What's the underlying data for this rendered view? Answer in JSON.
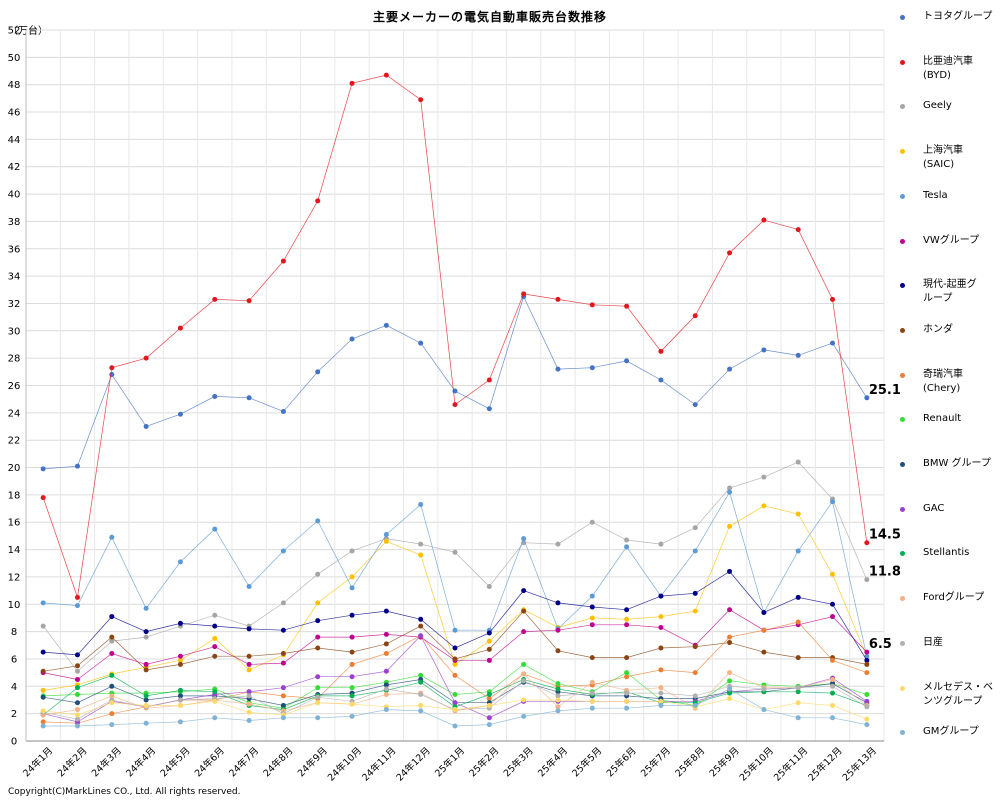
{
  "chart_data": {
    "type": "line",
    "title": "主要メーカーの電気自動車販売台数推移",
    "unit": "（万台）",
    "copyright": "Copyright(C)MarkLines CO., Ltd. All rights reserved.",
    "categories": [
      "24年1月",
      "24年2月",
      "24年3月",
      "24年4月",
      "24年5月",
      "24年6月",
      "24年7月",
      "24年8月",
      "24年9月",
      "24年10月",
      "24年11月",
      "24年12月",
      "25年1月",
      "25年2月",
      "25年3月",
      "25年4月",
      "25年5月",
      "25年6月",
      "25年7月",
      "25年8月",
      "25年9月",
      "25年10月",
      "25年11月",
      "25年12月",
      "25年13月"
    ],
    "yticks": [
      "0",
      "2",
      "4",
      "6",
      "8",
      "10",
      "12",
      "14",
      "16",
      "18",
      "20",
      "22",
      "24",
      "26",
      "28",
      "30",
      "32",
      "34",
      "36",
      "38",
      "40",
      "42",
      "44",
      "46",
      "48",
      "50",
      "52"
    ],
    "ylim": [
      0,
      52
    ],
    "grid": true,
    "legend_position": "right",
    "series": [
      {
        "name": "トヨタグループ",
        "color": "#4472c4",
        "values": [
          19.9,
          20.1,
          26.8,
          23.0,
          23.9,
          25.2,
          25.1,
          24.1,
          27.0,
          29.4,
          30.4,
          29.1,
          25.6,
          24.3,
          32.5,
          27.2,
          27.3,
          27.8,
          26.4,
          24.6,
          27.2,
          28.6,
          28.2,
          29.1,
          25.1
        ]
      },
      {
        "name": "比亜迪汽車\n(BYD)",
        "color": "#e4161d",
        "values": [
          17.8,
          10.5,
          27.3,
          28.0,
          30.2,
          32.3,
          32.2,
          35.1,
          39.5,
          48.1,
          48.7,
          46.9,
          24.6,
          26.4,
          32.7,
          32.3,
          31.9,
          31.8,
          28.5,
          31.1,
          35.7,
          38.1,
          37.4,
          32.3,
          14.5
        ]
      },
      {
        "name": "Geely",
        "color": "#a5a5a5",
        "values": [
          8.4,
          5.1,
          7.3,
          7.6,
          8.4,
          9.2,
          8.4,
          10.1,
          12.2,
          13.9,
          14.8,
          14.4,
          13.8,
          11.3,
          14.5,
          14.4,
          16.0,
          14.7,
          14.4,
          15.6,
          18.5,
          19.3,
          20.4,
          17.7,
          11.8
        ]
      },
      {
        "name": "上海汽車\n(SAIC)",
        "color": "#ffc000",
        "values": [
          3.7,
          4.1,
          4.9,
          5.4,
          5.9,
          7.5,
          5.2,
          6.3,
          10.1,
          12.0,
          14.6,
          13.6,
          5.6,
          7.3,
          9.6,
          8.3,
          9.0,
          8.9,
          9.1,
          9.5,
          15.7,
          17.2,
          16.6,
          12.2,
          6.2
        ]
      },
      {
        "name": "Tesla",
        "color": "#5b9bd5",
        "values": [
          10.1,
          9.9,
          14.9,
          9.7,
          13.1,
          15.5,
          11.3,
          13.9,
          16.1,
          11.2,
          15.1,
          17.3,
          8.1,
          8.1,
          14.8,
          8.2,
          10.6,
          14.2,
          10.6,
          13.9,
          18.2,
          9.4,
          13.9,
          17.5,
          6.2
        ]
      },
      {
        "name": "VWグループ",
        "color": "#c00090",
        "values": [
          5.0,
          4.5,
          6.4,
          5.6,
          6.2,
          6.9,
          5.6,
          5.7,
          7.6,
          7.6,
          7.8,
          7.6,
          5.9,
          5.9,
          8.0,
          8.1,
          8.5,
          8.5,
          8.3,
          7.0,
          9.6,
          8.1,
          8.5,
          9.1,
          6.5
        ]
      },
      {
        "name": "現代-起亜グ\nループ",
        "color": "#00008b",
        "values": [
          6.5,
          6.3,
          9.1,
          8.0,
          8.6,
          8.4,
          8.2,
          8.1,
          8.8,
          9.2,
          9.5,
          8.9,
          6.8,
          7.9,
          11.0,
          10.1,
          9.8,
          9.6,
          10.6,
          10.8,
          12.4,
          9.4,
          10.5,
          10.0,
          5.9
        ]
      },
      {
        "name": "ホンダ",
        "color": "#8b4513",
        "values": [
          5.1,
          5.5,
          7.6,
          5.2,
          5.6,
          6.2,
          6.2,
          6.4,
          6.8,
          6.5,
          7.1,
          8.4,
          6.0,
          6.7,
          9.5,
          6.6,
          6.1,
          6.1,
          6.8,
          6.9,
          7.2,
          6.5,
          6.1,
          6.1,
          5.6
        ]
      },
      {
        "name": "奇瑞汽車\n(Chery)",
        "color": "#ed7d31",
        "values": [
          1.4,
          1.3,
          2.0,
          2.5,
          3.0,
          3.0,
          3.6,
          3.3,
          3.1,
          5.6,
          6.4,
          7.7,
          4.8,
          3.1,
          4.9,
          4.0,
          4.1,
          4.7,
          5.2,
          5.0,
          7.6,
          8.1,
          8.7,
          5.9,
          5.0
        ]
      },
      {
        "name": "Renault",
        "color": "#33dd33",
        "values": [
          3.3,
          3.4,
          3.5,
          3.5,
          3.6,
          3.8,
          2.8,
          2.4,
          3.9,
          3.9,
          4.3,
          4.8,
          3.4,
          3.6,
          5.6,
          4.2,
          3.6,
          5.0,
          3.0,
          2.6,
          4.4,
          4.1,
          4.0,
          4.2,
          3.4
        ]
      },
      {
        "name": "BMW グループ",
        "color": "#1f4e79",
        "values": [
          3.2,
          2.8,
          4.0,
          3.0,
          3.3,
          3.3,
          3.1,
          2.6,
          3.4,
          3.5,
          4.1,
          4.5,
          2.8,
          2.8,
          4.3,
          3.6,
          3.3,
          3.3,
          3.1,
          3.1,
          3.6,
          3.6,
          3.9,
          4.2,
          2.8
        ]
      },
      {
        "name": "GAC",
        "color": "#9b40d0",
        "values": [
          2.0,
          1.4,
          2.9,
          2.5,
          3.0,
          3.4,
          3.6,
          3.9,
          4.7,
          4.7,
          5.1,
          7.7,
          2.8,
          1.7,
          2.9,
          2.9,
          2.9,
          2.9,
          2.9,
          2.9,
          3.6,
          3.8,
          3.9,
          4.6,
          2.9
        ]
      },
      {
        "name": "Stellantis",
        "color": "#00b050",
        "values": [
          1.9,
          3.9,
          4.8,
          3.3,
          3.7,
          3.6,
          2.6,
          2.3,
          3.3,
          3.3,
          3.7,
          4.3,
          2.5,
          3.4,
          4.5,
          3.8,
          3.4,
          3.6,
          2.8,
          2.8,
          3.5,
          3.6,
          3.6,
          3.5,
          2.6
        ]
      },
      {
        "name": "Fordグループ",
        "color": "#f4b183",
        "values": [
          1.9,
          2.3,
          3.3,
          2.4,
          2.6,
          3.0,
          2.7,
          2.2,
          2.8,
          2.7,
          3.4,
          3.5,
          2.2,
          2.6,
          4.9,
          2.5,
          4.3,
          3.7,
          3.9,
          2.4,
          5.0,
          3.9,
          3.9,
          4.5,
          2.6
        ]
      },
      {
        "name": "日産",
        "color": "#b0b0b0",
        "values": [
          2.1,
          1.6,
          3.0,
          2.5,
          3.0,
          3.1,
          3.3,
          2.0,
          3.2,
          2.9,
          3.8,
          3.4,
          2.3,
          2.4,
          4.4,
          3.3,
          3.5,
          3.5,
          3.5,
          3.3,
          4.0,
          3.8,
          3.9,
          4.0,
          2.5
        ]
      },
      {
        "name": "メルセデス・ベ\nンツグループ",
        "color": "#ffd966",
        "values": [
          2.2,
          1.9,
          2.8,
          2.6,
          2.6,
          2.9,
          2.1,
          1.9,
          2.8,
          2.7,
          2.5,
          2.6,
          2.3,
          2.6,
          3.0,
          3.0,
          2.9,
          2.9,
          2.9,
          2.5,
          3.1,
          2.3,
          2.8,
          2.6,
          1.6
        ]
      },
      {
        "name": "GMグループ",
        "color": "#7fb3d5",
        "values": [
          1.1,
          1.1,
          1.2,
          1.3,
          1.4,
          1.7,
          1.5,
          1.7,
          1.7,
          1.8,
          2.3,
          2.2,
          1.1,
          1.2,
          1.8,
          2.2,
          2.4,
          2.4,
          2.6,
          2.6,
          3.8,
          2.3,
          1.7,
          1.7,
          1.2
        ]
      }
    ],
    "annotations": [
      {
        "series": 0,
        "text": "25.1"
      },
      {
        "series": 1,
        "text": "14.5"
      },
      {
        "series": 2,
        "text": "11.8"
      },
      {
        "series": 5,
        "text": "6.5"
      }
    ]
  }
}
